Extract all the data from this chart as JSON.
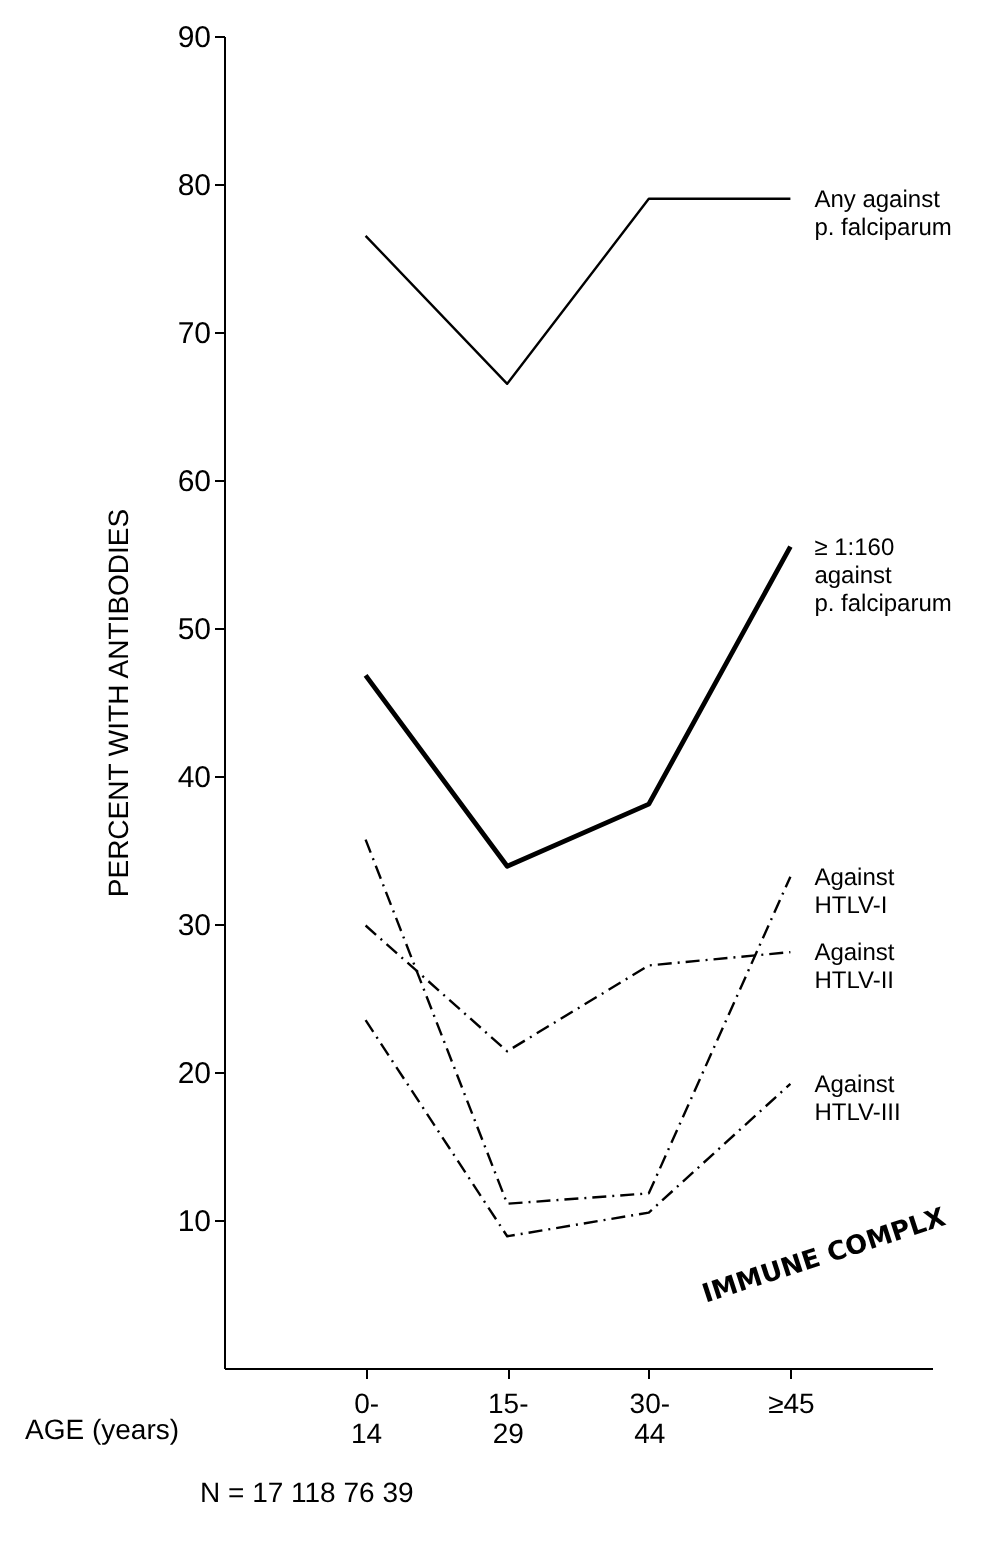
{
  "chart_data": {
    "type": "line",
    "xlabel": "AGE (years)",
    "ylabel": "PERCENT WITH ANTIBODIES",
    "categories": [
      "0- 14",
      "15- 29",
      "30- 44",
      "≥45"
    ],
    "ylim": [
      0,
      90
    ],
    "yticks": [
      10,
      20,
      30,
      40,
      50,
      60,
      70,
      80,
      90
    ],
    "grid": false,
    "series": [
      {
        "name": "Any against\np. falciparum",
        "color": "#000000",
        "line_style": "solid",
        "values": [
          76.5,
          66.5,
          79,
          79
        ]
      },
      {
        "name": "≥ 1:160\nagainst\np. falciparum",
        "color": "#000000",
        "line_style": "solid",
        "values": [
          46.8,
          33.9,
          38.1,
          55.5
        ]
      },
      {
        "name": "Against\nHTLV-I",
        "color": "#000000",
        "line_style": "dashed",
        "values": [
          35.7,
          11.1,
          11.8,
          33.2
        ]
      },
      {
        "name": "Against\nHTLV-II",
        "color": "#000000",
        "line_style": "dashed",
        "values": [
          29.9,
          21.4,
          27.2,
          28.1
        ]
      },
      {
        "name": "Against\nHTLV-III",
        "color": "#000000",
        "line_style": "dashed",
        "values": [
          23.5,
          8.9,
          10.5,
          19.2
        ]
      }
    ],
    "annotations": [
      "N  =  17  118   76    39",
      "IMMUNE COMPLX"
    ]
  }
}
